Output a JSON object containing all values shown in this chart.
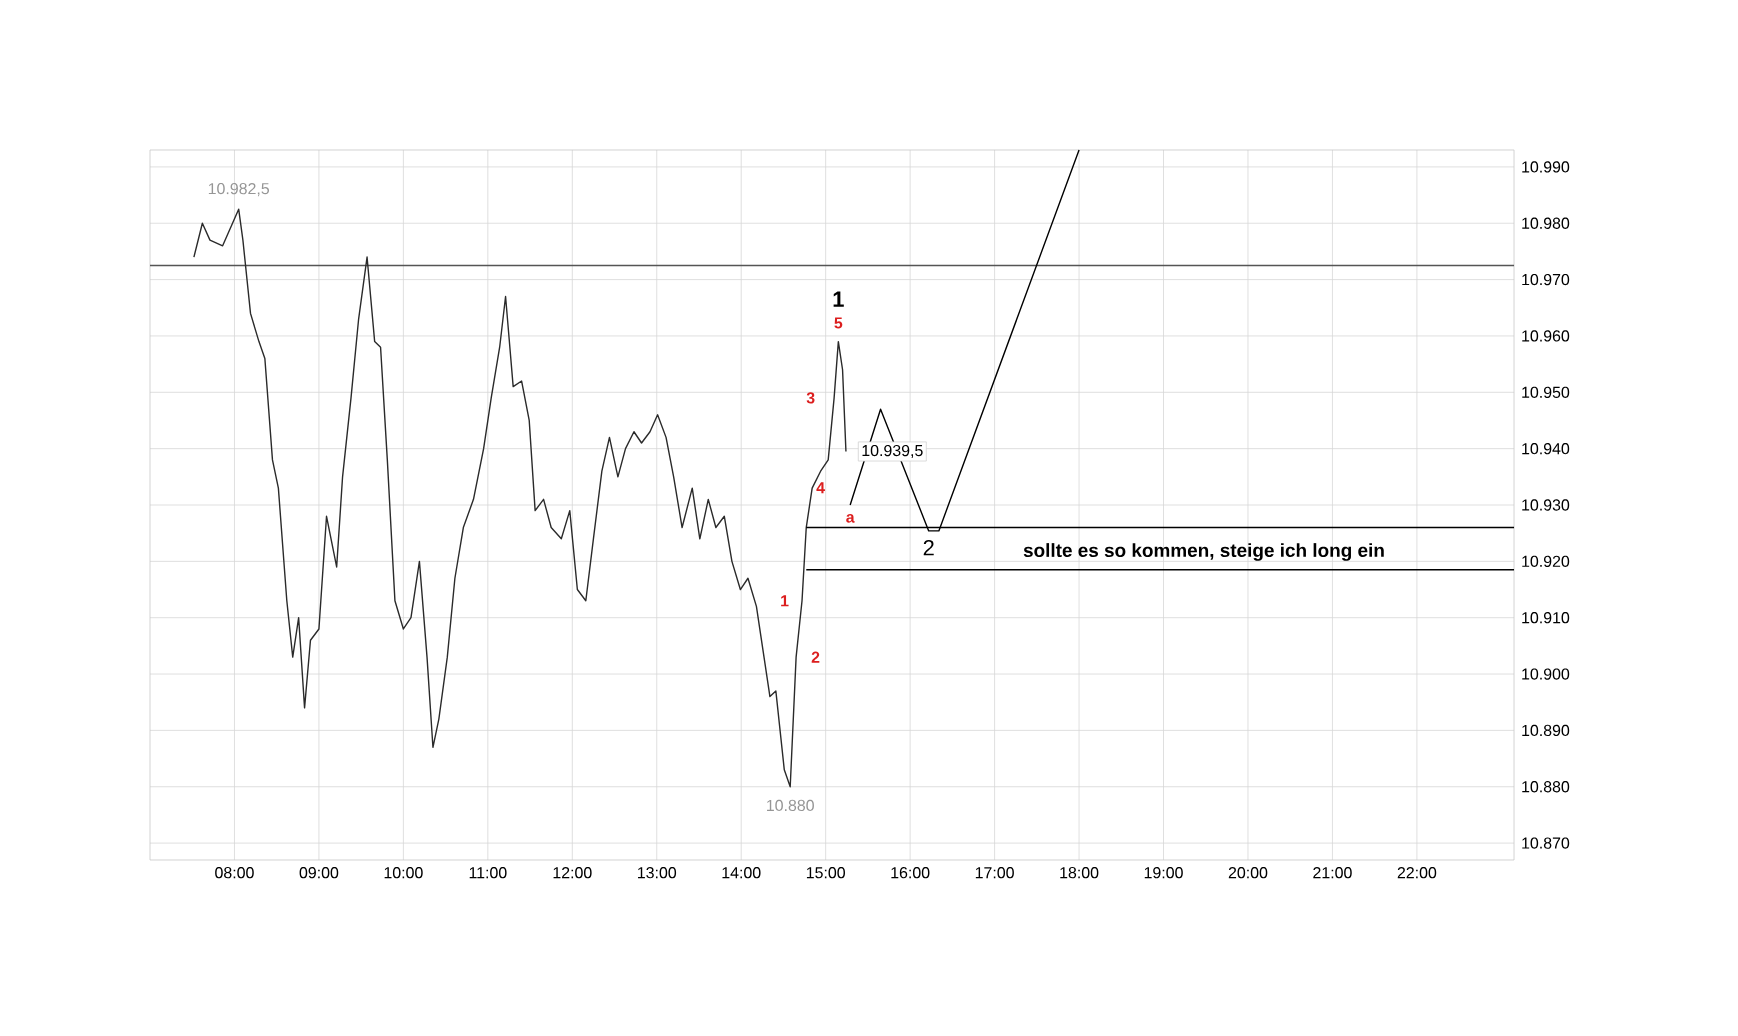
{
  "chart_data": {
    "type": "line",
    "xlim": [
      7.0,
      23.15
    ],
    "ylim": [
      10867,
      10993
    ],
    "xticks": [
      {
        "value": 8,
        "label": "08:00"
      },
      {
        "value": 9,
        "label": "09:00"
      },
      {
        "value": 10,
        "label": "10:00"
      },
      {
        "value": 11,
        "label": "11:00"
      },
      {
        "value": 12,
        "label": "12:00"
      },
      {
        "value": 13,
        "label": "13:00"
      },
      {
        "value": 14,
        "label": "14:00"
      },
      {
        "value": 15,
        "label": "15:00"
      },
      {
        "value": 16,
        "label": "16:00"
      },
      {
        "value": 17,
        "label": "17:00"
      },
      {
        "value": 18,
        "label": "18:00"
      },
      {
        "value": 19,
        "label": "19:00"
      },
      {
        "value": 20,
        "label": "20:00"
      },
      {
        "value": 21,
        "label": "21:00"
      },
      {
        "value": 22,
        "label": "22:00"
      }
    ],
    "yticks": [
      {
        "value": 10870,
        "label": "10.870"
      },
      {
        "value": 10880,
        "label": "10.880"
      },
      {
        "value": 10890,
        "label": "10.890"
      },
      {
        "value": 10900,
        "label": "10.900"
      },
      {
        "value": 10910,
        "label": "10.910"
      },
      {
        "value": 10920,
        "label": "10.920"
      },
      {
        "value": 10930,
        "label": "10.930"
      },
      {
        "value": 10940,
        "label": "10.940"
      },
      {
        "value": 10950,
        "label": "10.950"
      },
      {
        "value": 10960,
        "label": "10.960"
      },
      {
        "value": 10970,
        "label": "10.970"
      },
      {
        "value": 10980,
        "label": "10.980"
      },
      {
        "value": 10990,
        "label": "10.990"
      }
    ],
    "grid": true,
    "series": [
      {
        "color": "#2a2a2a",
        "x": [
          7.52,
          7.62,
          7.71,
          7.86,
          8.05,
          8.1,
          8.19,
          8.29,
          8.36,
          8.45,
          8.52,
          8.62,
          8.69,
          8.76,
          8.83,
          8.9,
          9.0,
          9.09,
          9.21,
          9.28,
          9.38,
          9.47,
          9.57,
          9.66,
          9.73,
          9.81,
          9.9,
          10.0,
          10.09,
          10.19,
          10.28,
          10.35,
          10.42,
          10.52,
          10.61,
          10.71,
          10.83,
          10.95,
          11.04,
          11.14,
          11.21,
          11.3,
          11.4,
          11.49,
          11.56,
          11.66,
          11.75,
          11.87,
          11.97,
          12.06,
          12.16,
          12.25,
          12.35,
          12.44,
          12.54,
          12.63,
          12.73,
          12.82,
          12.92,
          13.01,
          13.11,
          13.2,
          13.3,
          13.42,
          13.51,
          13.61,
          13.7,
          13.8,
          13.89,
          13.99,
          14.08,
          14.18,
          14.27,
          14.34,
          14.41,
          14.51,
          14.58,
          14.65,
          14.72,
          14.77,
          14.84,
          14.94,
          15.03,
          15.1,
          15.15,
          15.2,
          15.24
        ],
        "values": [
          10974,
          10980,
          10977,
          10976,
          10982.5,
          10977,
          10964,
          10959,
          10956,
          10938,
          10933,
          10913,
          10903,
          10910,
          10894,
          10906,
          10908,
          10928,
          10919,
          10935,
          10949,
          10963,
          10974,
          10959,
          10958,
          10938,
          10913,
          10908,
          10910,
          10920,
          10903,
          10887,
          10892,
          10903,
          10917,
          10926,
          10931,
          10940,
          10949,
          10958,
          10967,
          10951,
          10952,
          10945,
          10929,
          10931,
          10926,
          10924,
          10929,
          10915,
          10913,
          10924,
          10936,
          10942,
          10935,
          10940,
          10943,
          10941,
          10943,
          10946,
          10942,
          10935,
          10926,
          10933,
          10924,
          10931,
          10926,
          10928,
          10920,
          10915,
          10917,
          10912,
          10903,
          10896,
          10897,
          10883,
          10880,
          10903,
          10913,
          10926,
          10933,
          10936,
          10938,
          10949,
          10959,
          10954,
          10939.5
        ]
      },
      {
        "color": "#000000",
        "x": [
          15.29,
          15.65,
          16.22,
          16.34,
          18.0
        ],
        "values": [
          10930,
          10947,
          10925.4,
          10925.4,
          10993
        ]
      },
      {
        "color": "#000000",
        "x": [
          14.77,
          23.15
        ],
        "values": [
          10926,
          10926
        ]
      },
      {
        "color": "#000000",
        "x": [
          14.77,
          23.15
        ],
        "values": [
          10918.5,
          10918.5
        ]
      }
    ],
    "ref_lines": [
      {
        "axis": "y",
        "value": 10972.5,
        "color": "#555555"
      }
    ],
    "annotations": [
      {
        "text": "10.982,5",
        "x": 8.05,
        "y": 10982.5
      },
      {
        "text": "10.880",
        "x": 14.58,
        "y": 10880
      },
      {
        "text": "10.939,5",
        "x": 15.24,
        "y": 10939.5
      },
      {
        "text": "1",
        "x": 15.15,
        "y": 10959
      },
      {
        "text": "5",
        "x": 15.15,
        "y": 10959
      },
      {
        "text": "3",
        "x": 15.1,
        "y": 10949
      },
      {
        "text": "4",
        "x": 14.94,
        "y": 10936
      },
      {
        "text": "a",
        "x": 15.29,
        "y": 10930
      },
      {
        "text": "1",
        "x": 14.72,
        "y": 10913
      },
      {
        "text": "2",
        "x": 14.65,
        "y": 10903
      },
      {
        "text": "2",
        "x": 16.22,
        "y": 10925.4
      },
      "sollte es so kommen, steige ich long ein"
    ]
  }
}
